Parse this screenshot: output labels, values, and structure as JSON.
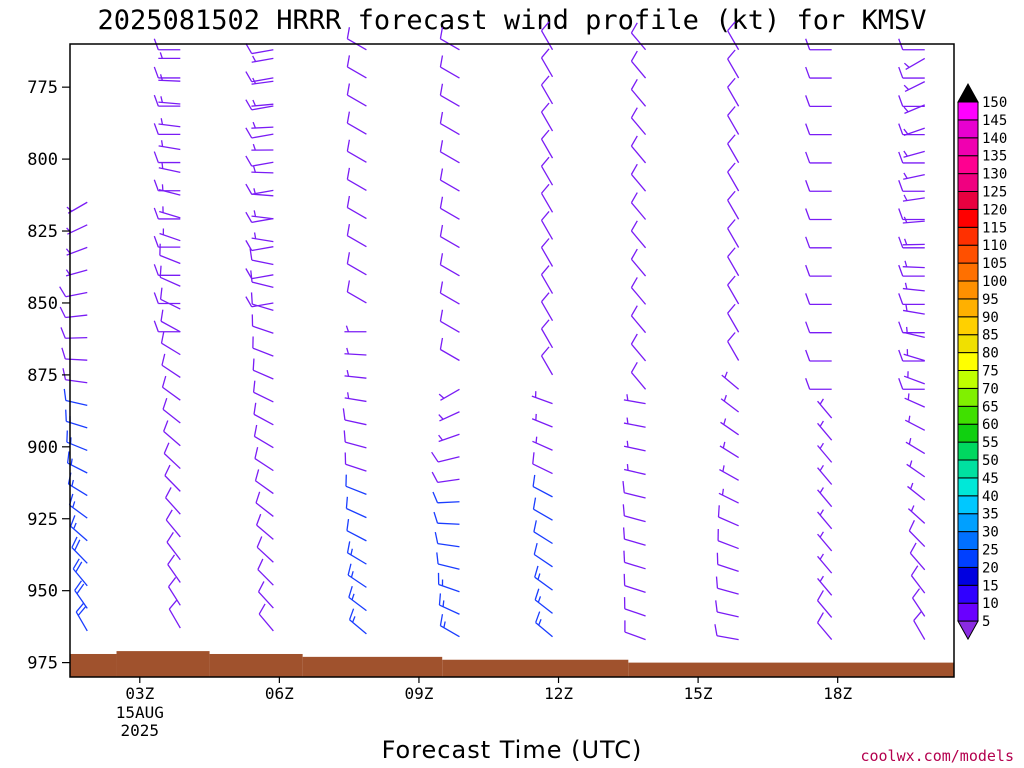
{
  "chart_data": {
    "type": "wind-barb time-height",
    "title": "2025081502 HRRR forecast wind profile (kt) for KMSV",
    "xlabel": "Forecast Time (UTC)",
    "ylabel": "",
    "y_ticks": [
      775,
      800,
      825,
      850,
      875,
      900,
      925,
      950,
      975
    ],
    "y_range": [
      760,
      980
    ],
    "x_range_hours": [
      1.5,
      20.5
    ],
    "x_ticks": [
      {
        "hour": 3,
        "label": "03Z",
        "sub": [
          "15AUG",
          "2025"
        ]
      },
      {
        "hour": 6,
        "label": "06Z"
      },
      {
        "hour": 9,
        "label": "09Z"
      },
      {
        "hour": 12,
        "label": "12Z"
      },
      {
        "hour": 15,
        "label": "15Z"
      },
      {
        "hour": 18,
        "label": "18Z"
      }
    ],
    "columns": [
      {
        "hour": 2.0,
        "top": 815,
        "speed_low": 20,
        "dir_top": 240,
        "dir_low": 330,
        "blue_below": 880
      },
      {
        "hour": 4.0,
        "top": 765,
        "speed_low": 12,
        "dir_top": 270,
        "dir_low": 330,
        "blue_below": null
      },
      {
        "hour": 6.0,
        "top": 765,
        "speed_low": 12,
        "dir_top": 260,
        "dir_low": 320,
        "blue_below": null
      },
      {
        "hour": 8.0,
        "top": 860,
        "speed_low": 15,
        "dir_top": 270,
        "dir_low": 310,
        "blue_below": 910
      },
      {
        "hour": 10.0,
        "top": 880,
        "speed_low": 15,
        "dir_top": 240,
        "dir_low": 300,
        "blue_below": 915
      },
      {
        "hour": 12.0,
        "top": 885,
        "speed_low": 15,
        "dir_top": 290,
        "dir_low": 310,
        "blue_below": 915
      },
      {
        "hour": 14.0,
        "top": 885,
        "speed_low": 12,
        "dir_top": 280,
        "dir_low": 290,
        "blue_below": null
      },
      {
        "hour": 16.0,
        "top": 880,
        "speed_low": 10,
        "dir_top": 310,
        "dir_low": 280,
        "blue_below": null
      },
      {
        "hour": 18.0,
        "top": 890,
        "speed_low": 8,
        "dir_top": 320,
        "dir_low": 320,
        "blue_below": null
      },
      {
        "hour": 20.0,
        "top": 765,
        "speed_low": 8,
        "dir_top": 240,
        "dir_low": 330,
        "blue_below": null
      }
    ],
    "upper_columns": [
      {
        "hour": 4.0,
        "bottom": 860,
        "speed": 8,
        "dir": 270
      },
      {
        "hour": 6.0,
        "bottom": 850,
        "speed": 10,
        "dir": 260
      },
      {
        "hour": 8.0,
        "bottom": 850,
        "speed": 10,
        "dir": 300
      },
      {
        "hour": 10.0,
        "bottom": 870,
        "speed": 10,
        "dir": 300
      },
      {
        "hour": 12.0,
        "bottom": 875,
        "speed": 10,
        "dir": 330
      },
      {
        "hour": 14.0,
        "bottom": 880,
        "speed": 10,
        "dir": 320
      },
      {
        "hour": 16.0,
        "bottom": 870,
        "speed": 10,
        "dir": 330
      },
      {
        "hour": 18.0,
        "bottom": 880,
        "speed": 8,
        "dir": 270
      },
      {
        "hour": 20.0,
        "bottom": 880,
        "speed": 8,
        "dir": 270
      }
    ],
    "terrain": [
      {
        "from": 1.5,
        "to": 2.5,
        "pressure": 972
      },
      {
        "from": 2.5,
        "to": 4.5,
        "pressure": 971
      },
      {
        "from": 4.5,
        "to": 6.5,
        "pressure": 972
      },
      {
        "from": 6.5,
        "to": 9.5,
        "pressure": 973
      },
      {
        "from": 9.5,
        "to": 13.5,
        "pressure": 974
      },
      {
        "from": 13.5,
        "to": 20.5,
        "pressure": 975
      }
    ],
    "terrain_color": "#a0522d",
    "colorbar": {
      "labels": [
        "5",
        "10",
        "15",
        "20",
        "25",
        "30",
        "35",
        "40",
        "45",
        "50",
        "55",
        "60",
        "65",
        "70",
        "75",
        "80",
        "85",
        "90",
        "95",
        "100",
        "105",
        "110",
        "115",
        "120",
        "125",
        "130",
        "135",
        "140",
        "145",
        "150"
      ],
      "colors": [
        "#8a2be2",
        "#6a00ff",
        "#3000ff",
        "#0000e0",
        "#0040ff",
        "#0070ff",
        "#00a0ff",
        "#00c8ff",
        "#00e8d8",
        "#00e0a0",
        "#00d860",
        "#10d010",
        "#40e000",
        "#80f000",
        "#c0ff00",
        "#ffff00",
        "#f0e000",
        "#ffd000",
        "#ffb000",
        "#ff9000",
        "#ff7000",
        "#ff5000",
        "#ff3000",
        "#ff0000",
        "#e80040",
        "#f00080",
        "#ff0090",
        "#f000b0",
        "#e800d0",
        "#ff00ff"
      ]
    }
  },
  "credit": "coolwx.com/models"
}
